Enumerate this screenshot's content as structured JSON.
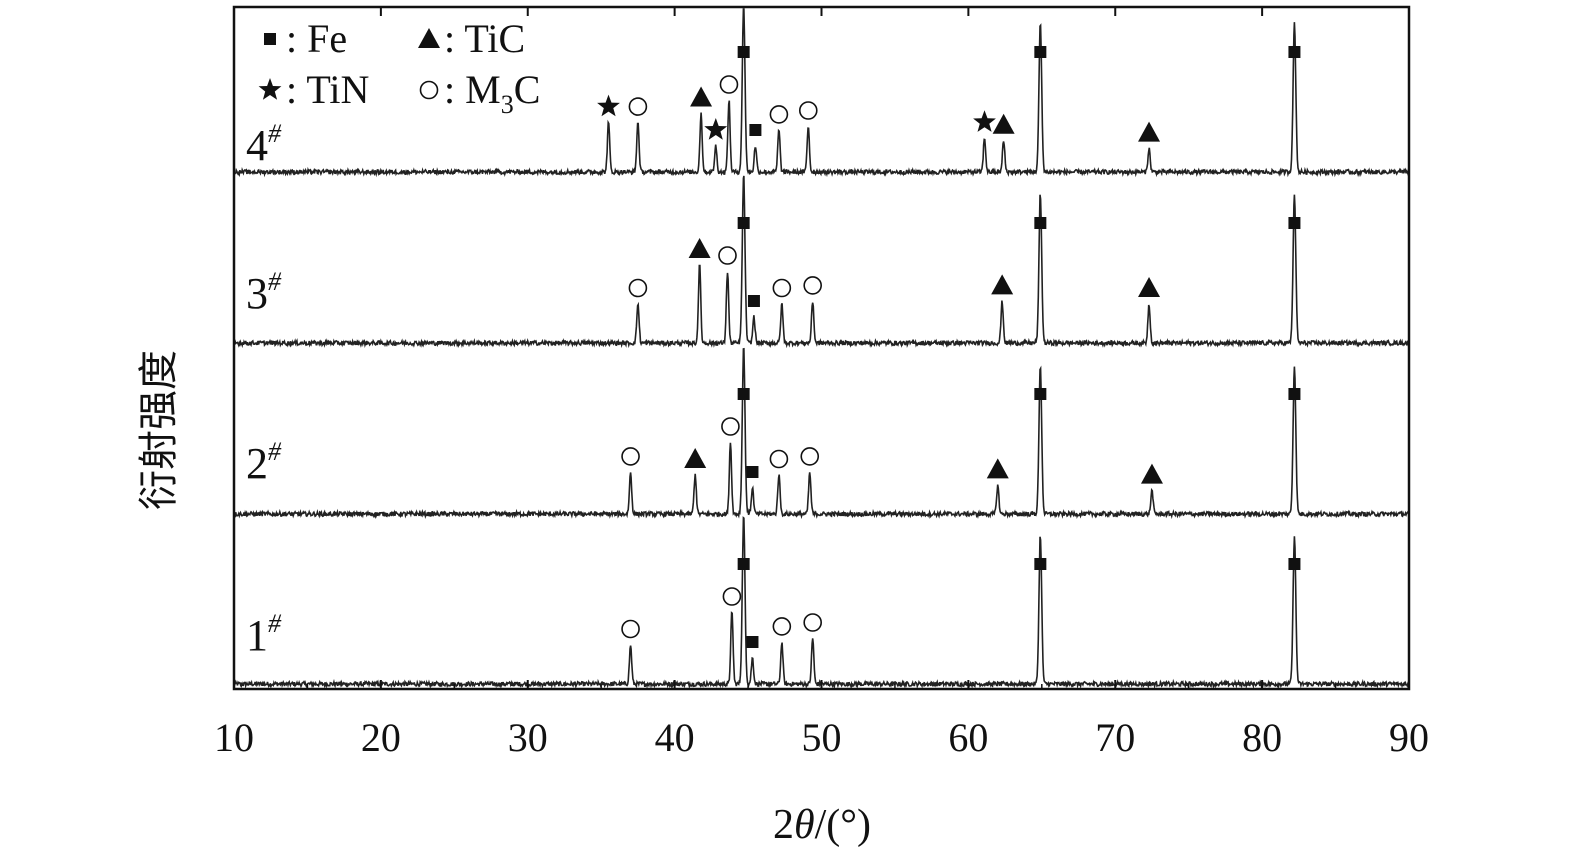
{
  "chart_data": {
    "type": "line",
    "xlabel_parts": {
      "prefix": "2",
      "symbol": "θ",
      "suffix": "/(°)"
    },
    "ylabel": "衍射强度",
    "xlim": [
      10,
      90
    ],
    "x_ticks": [
      10,
      20,
      30,
      40,
      50,
      60,
      70,
      80,
      90
    ],
    "grid": false,
    "legend": {
      "position": "top-left",
      "entries": [
        {
          "marker": "square",
          "label": ": Fe"
        },
        {
          "marker": "triangle",
          "label": ": TiC"
        },
        {
          "marker": "star",
          "label": ": TiN"
        },
        {
          "marker": "circle",
          "label": ": M",
          "subscript": "3",
          "tail": "C"
        }
      ]
    },
    "series": [
      {
        "name": "1",
        "sup": "#",
        "peaks": [
          {
            "x": 37.0,
            "h": 0.3,
            "phase": "M3C"
          },
          {
            "x": 43.9,
            "h": 0.55,
            "phase": "M3C"
          },
          {
            "x": 44.7,
            "h": 1.3,
            "phase": "Fe"
          },
          {
            "x": 45.3,
            "h": 0.2,
            "phase": "Fe"
          },
          {
            "x": 47.3,
            "h": 0.32,
            "phase": "M3C"
          },
          {
            "x": 49.4,
            "h": 0.35,
            "phase": "M3C"
          },
          {
            "x": 64.9,
            "h": 1.15,
            "phase": "Fe"
          },
          {
            "x": 82.2,
            "h": 1.15,
            "phase": "Fe"
          }
        ]
      },
      {
        "name": "2",
        "sup": "#",
        "peaks": [
          {
            "x": 37.0,
            "h": 0.32,
            "phase": "M3C"
          },
          {
            "x": 41.4,
            "h": 0.3,
            "phase": "TiC"
          },
          {
            "x": 43.8,
            "h": 0.55,
            "phase": "M3C"
          },
          {
            "x": 44.7,
            "h": 1.3,
            "phase": "Fe"
          },
          {
            "x": 45.3,
            "h": 0.2,
            "phase": "Fe"
          },
          {
            "x": 47.1,
            "h": 0.3,
            "phase": "M3C"
          },
          {
            "x": 49.2,
            "h": 0.32,
            "phase": "M3C"
          },
          {
            "x": 62.0,
            "h": 0.22,
            "phase": "TiC"
          },
          {
            "x": 64.9,
            "h": 1.15,
            "phase": "Fe"
          },
          {
            "x": 72.5,
            "h": 0.18,
            "phase": "TiC"
          },
          {
            "x": 82.2,
            "h": 1.15,
            "phase": "Fe"
          }
        ]
      },
      {
        "name": "3",
        "sup": "#",
        "peaks": [
          {
            "x": 37.5,
            "h": 0.3,
            "phase": "M3C"
          },
          {
            "x": 41.7,
            "h": 0.6,
            "phase": "TiC"
          },
          {
            "x": 43.6,
            "h": 0.55,
            "phase": "M3C"
          },
          {
            "x": 44.7,
            "h": 1.3,
            "phase": "Fe"
          },
          {
            "x": 45.4,
            "h": 0.2,
            "phase": "Fe"
          },
          {
            "x": 47.3,
            "h": 0.3,
            "phase": "M3C"
          },
          {
            "x": 49.4,
            "h": 0.32,
            "phase": "M3C"
          },
          {
            "x": 62.3,
            "h": 0.32,
            "phase": "TiC"
          },
          {
            "x": 64.9,
            "h": 1.15,
            "phase": "Fe"
          },
          {
            "x": 72.3,
            "h": 0.3,
            "phase": "TiC"
          },
          {
            "x": 82.2,
            "h": 1.15,
            "phase": "Fe"
          }
        ]
      },
      {
        "name": "4",
        "sup": "#",
        "peaks": [
          {
            "x": 35.5,
            "h": 0.38,
            "phase": "TiN"
          },
          {
            "x": 37.5,
            "h": 0.38,
            "phase": "M3C"
          },
          {
            "x": 41.8,
            "h": 0.45,
            "phase": "TiC"
          },
          {
            "x": 42.8,
            "h": 0.2,
            "phase": "TiN"
          },
          {
            "x": 43.7,
            "h": 0.55,
            "phase": "M3C"
          },
          {
            "x": 44.7,
            "h": 1.3,
            "phase": "Fe"
          },
          {
            "x": 45.5,
            "h": 0.2,
            "phase": "Fe"
          },
          {
            "x": 47.1,
            "h": 0.32,
            "phase": "M3C"
          },
          {
            "x": 49.1,
            "h": 0.35,
            "phase": "M3C"
          },
          {
            "x": 61.1,
            "h": 0.26,
            "phase": "TiN"
          },
          {
            "x": 62.4,
            "h": 0.24,
            "phase": "TiC"
          },
          {
            "x": 64.9,
            "h": 1.15,
            "phase": "Fe"
          },
          {
            "x": 72.3,
            "h": 0.18,
            "phase": "TiC"
          },
          {
            "x": 82.2,
            "h": 1.15,
            "phase": "Fe"
          }
        ]
      }
    ]
  }
}
